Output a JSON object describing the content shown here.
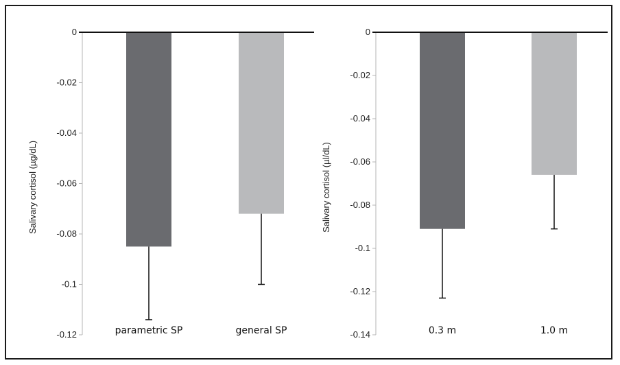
{
  "chart_data": [
    {
      "type": "bar",
      "categories": [
        "parametric SP",
        "general SP"
      ],
      "values": [
        -0.085,
        -0.072
      ],
      "error_bars": [
        -0.114,
        -0.1
      ],
      "bar_colors": [
        "#6a6b6f",
        "#b9babc"
      ],
      "ylabel": "Salivary cortisol (µg/dL)",
      "xlabel": "",
      "ylim": [
        -0.12,
        0
      ],
      "yticks": [
        0,
        -0.02,
        -0.04,
        -0.06,
        -0.08,
        -0.1,
        -0.12
      ],
      "ytick_labels": [
        "0",
        "-0.02",
        "-0.04",
        "-0.06",
        "-0.08",
        "-0.1",
        "-0.12"
      ],
      "grid": false
    },
    {
      "type": "bar",
      "categories": [
        "0.3 m",
        "1.0 m"
      ],
      "values": [
        -0.091,
        -0.066
      ],
      "error_bars": [
        -0.123,
        -0.091
      ],
      "bar_colors": [
        "#6a6b6f",
        "#b9babc"
      ],
      "ylabel": "Salivary cortisol (µl/dL)",
      "xlabel": "",
      "ylim": [
        -0.14,
        0
      ],
      "yticks": [
        0,
        -0.02,
        -0.04,
        -0.06,
        -0.08,
        -0.1,
        -0.12,
        -0.14
      ],
      "ytick_labels": [
        "0",
        "-0.02",
        "-0.04",
        "-0.06",
        "-0.08",
        "-0.1",
        "-0.12",
        "-0.14"
      ],
      "grid": false
    }
  ]
}
